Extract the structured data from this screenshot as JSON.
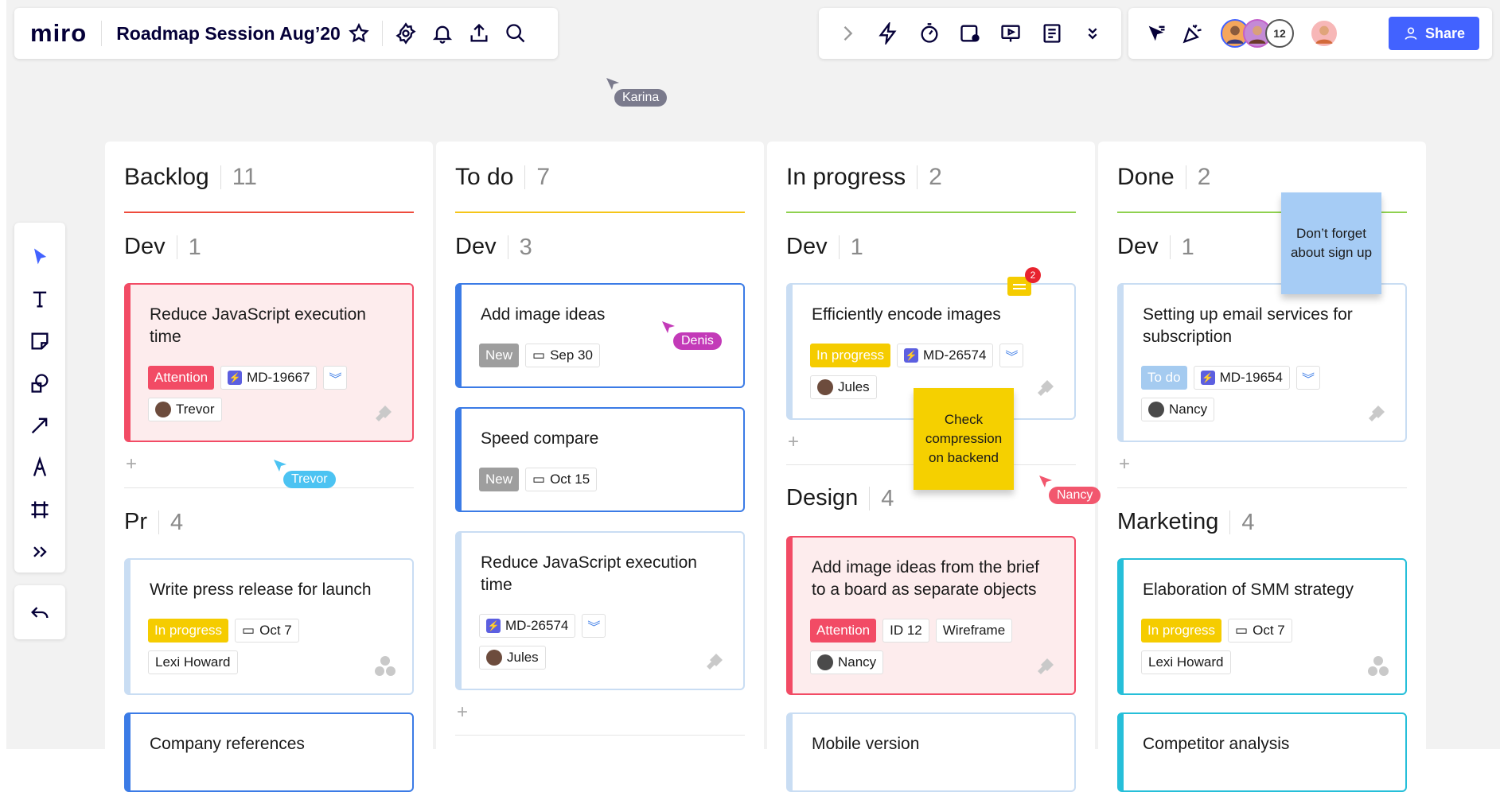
{
  "app": {
    "logo": "miro",
    "board_title": "Roadmap Session Aug’20"
  },
  "top_toolbar": {
    "avatar_count": "12",
    "share_label": "Share"
  },
  "colors": {
    "accent": "#4262ff",
    "attention": "#f24b65",
    "in_progress": "#f5cc00",
    "new": "#9e9e9e",
    "todo": "#a5cbf0"
  },
  "columns": [
    {
      "title": "Backlog",
      "count": "11",
      "line_color": "#ee4b3c"
    },
    {
      "title": "To do",
      "count": "7",
      "line_color": "#f5c518"
    },
    {
      "title": "In progress",
      "count": "2",
      "line_color": "#8fd14f"
    },
    {
      "title": "Done",
      "count": "2",
      "line_color": "#8fd14f"
    }
  ],
  "groups": {
    "backlog_dev": {
      "name": "Dev",
      "count": "1"
    },
    "backlog_pr": {
      "name": "Pr",
      "count": "4"
    },
    "todo_dev": {
      "name": "Dev",
      "count": "3"
    },
    "inprog_dev": {
      "name": "Dev",
      "count": "1"
    },
    "inprog_design": {
      "name": "Design",
      "count": "4"
    },
    "done_dev": {
      "name": "Dev",
      "count": "1"
    },
    "done_marketing": {
      "name": "Marketing",
      "count": "4"
    }
  },
  "cards": {
    "c1": {
      "title": "Reduce JavaScript execution time",
      "status": "Attention",
      "key": "MD-19667",
      "person": "Trevor"
    },
    "c2": {
      "title": "Write press release for launch",
      "status": "In progress",
      "date": "Oct 7",
      "person": "Lexi Howard"
    },
    "c3": {
      "title": "Company references"
    },
    "c4": {
      "title": "Add image ideas",
      "status": "New",
      "date": "Sep 30"
    },
    "c5": {
      "title": "Speed compare",
      "status": "New",
      "date": "Oct 15"
    },
    "c6": {
      "title": "Reduce JavaScript execution time",
      "key": "MD-26574",
      "person": "Jules"
    },
    "c7": {
      "title": "Efficiently encode images",
      "status": "In progress",
      "key": "MD-26574",
      "person": "Jules"
    },
    "c8": {
      "title": "Add image ideas from the brief to a board as separate objects",
      "status": "Attention",
      "id": "ID 12",
      "label": "Wireframe",
      "person": "Nancy"
    },
    "c9": {
      "title": "Mobile version"
    },
    "c10": {
      "title": "Setting up email services for subscription",
      "status": "To do",
      "key": "MD-19654",
      "person": "Nancy"
    },
    "c11": {
      "title": "Elaboration of SMM strategy",
      "status": "In progress",
      "date": "Oct 7",
      "person": "Lexi Howard"
    },
    "c12": {
      "title": "Competitor analysis"
    }
  },
  "stickies": {
    "s1": {
      "text": "Check compression on backend"
    },
    "s2": {
      "text": "Don’t forget about sign up"
    }
  },
  "comment_badge": "2",
  "cursors": {
    "karina": "Karina",
    "denis": "Denis",
    "trevor": "Trevor",
    "nancy": "Nancy"
  }
}
